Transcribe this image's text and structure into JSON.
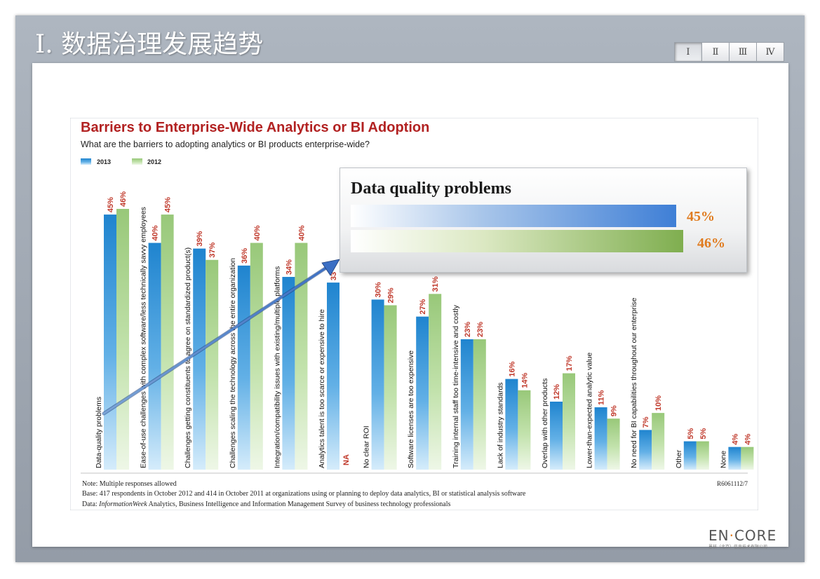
{
  "slide": {
    "title": "I. 数据治理发展趋势",
    "nav_tabs": [
      {
        "label": "Ⅰ",
        "active": true
      },
      {
        "label": "Ⅱ",
        "active": false
      },
      {
        "label": "Ⅲ",
        "active": false
      },
      {
        "label": "Ⅳ",
        "active": false
      }
    ],
    "logo": {
      "left": "EN",
      "right": "CORE",
      "subtitle": "恩核（北京）信息技术有限公司"
    }
  },
  "chart_data": {
    "type": "bar",
    "title": "Barriers to Enterprise-Wide Analytics or BI Adoption",
    "subtitle": "What are the barriers to adopting analytics or BI products enterprise-wide?",
    "categories": [
      "Data-quality problems",
      "Ease-of-use challenges with complex software/less technically savvy employees",
      "Challenges getting constituents to agree on standardized product(s)",
      "Challenges scaling the technology across the entire organization",
      "Integration/compatibility issues with existing/multiple platforms",
      "Analytics talent is too scarce or expensive to hire",
      "No clear ROI",
      "Software licenses are too expensive",
      "Training internal staff too time-intensive and costly",
      "Lack of industry standards",
      "Overlap with other products",
      "Lower-than-expected analytic value",
      "No need for BI capabilities throughout our enterprise",
      "Other",
      "None"
    ],
    "series": [
      {
        "name": "2013",
        "values": [
          45,
          40,
          39,
          36,
          34,
          33,
          30,
          27,
          23,
          16,
          12,
          11,
          7,
          5,
          4
        ],
        "labels": [
          "45%",
          "40%",
          "39%",
          "36%",
          "34%",
          "33",
          "30%",
          "27%",
          "23%",
          "16%",
          "12%",
          "11%",
          "7%",
          "5%",
          "4%"
        ],
        "color": "#2a8fd4"
      },
      {
        "name": "2012",
        "values": [
          46,
          45,
          37,
          40,
          40,
          null,
          29,
          31,
          23,
          14,
          17,
          9,
          10,
          5,
          4
        ],
        "labels": [
          "46%",
          "45%",
          "37%",
          "40%",
          "40%",
          "NA",
          "29%",
          "31%",
          "23%",
          "14%",
          "17%",
          "9%",
          "10%",
          "5%",
          "4%"
        ],
        "color": "#a9d08e"
      }
    ],
    "ylim": [
      0,
      50
    ],
    "grid": false,
    "legend": "top-left",
    "note": "Note: Multiple responses allowed",
    "base": "Base: 417 respondents in October 2012 and 414 in October 2011 at organizations using or planning to deploy data analytics, BI or statistical analysis software",
    "data_source_prefix": "Data: ",
    "data_source_italic": "InformationWeek",
    "data_source_suffix": " Analytics, Business Intelligence and Information Management Survey of business technology professionals",
    "report_id": "R6061112/7"
  },
  "callout": {
    "title": "Data quality problems",
    "values": [
      {
        "series": "2013",
        "value": 45,
        "label": "45%"
      },
      {
        "series": "2012",
        "value": 46,
        "label": "46%"
      }
    ]
  }
}
